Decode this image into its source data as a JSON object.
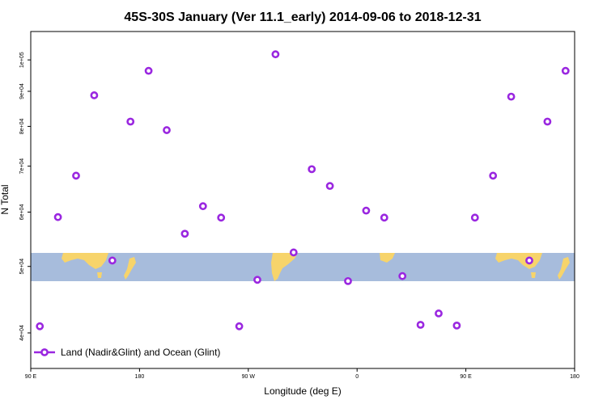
{
  "chart_data": {
    "type": "scatter",
    "title": "45S-30S January (Ver 11.1_early)   2014-09-06 to 2018-12-31",
    "xlabel": "Longitude (deg E)",
    "ylabel": "N Total",
    "x_tick_labels": [
      "90 E",
      "180",
      "90 W",
      "0",
      "90 E",
      "180"
    ],
    "x_ticks": [
      90,
      180,
      270,
      360,
      450,
      540
    ],
    "xlim": [
      90,
      540
    ],
    "y_scale": "log",
    "y_tick_labels": [
      "4e+04",
      "5e+04",
      "6e+04",
      "7e+04",
      "8e+04",
      "9e+04",
      "1e+05"
    ],
    "y_ticks": [
      40000,
      50000,
      60000,
      70000,
      80000,
      90000,
      100000
    ],
    "ylim": [
      35500,
      110000
    ],
    "grid": false,
    "legend_position": "bottom-left",
    "marker_color": "#9a27e0",
    "land_color": "#f7d46b",
    "ocean_color": "#a7bcdc",
    "map_band_lat": [
      -45,
      -30
    ],
    "series": [
      {
        "name": "Land (Nadir&Glint) and Ocean (Glint)",
        "x": [
          97.5,
          112.5,
          127.5,
          142.5,
          157.5,
          172.5,
          187.5,
          202.5,
          217.5,
          232.5,
          247.5,
          262.5,
          277.5,
          292.5,
          307.5,
          322.5,
          337.5,
          352.5,
          367.5,
          382.5,
          397.5,
          412.5,
          427.5,
          442.5,
          457.5,
          472.5,
          487.5,
          502.5,
          517.5,
          532.5
        ],
        "y": [
          40900,
          59000,
          67800,
          88800,
          51000,
          81300,
          96400,
          79000,
          55800,
          61200,
          58900,
          40900,
          47800,
          101900,
          52400,
          69300,
          65500,
          47600,
          60300,
          58900,
          48400,
          41100,
          42700,
          41000,
          58900,
          67800,
          88400,
          51000,
          81300,
          96400
        ]
      }
    ]
  }
}
